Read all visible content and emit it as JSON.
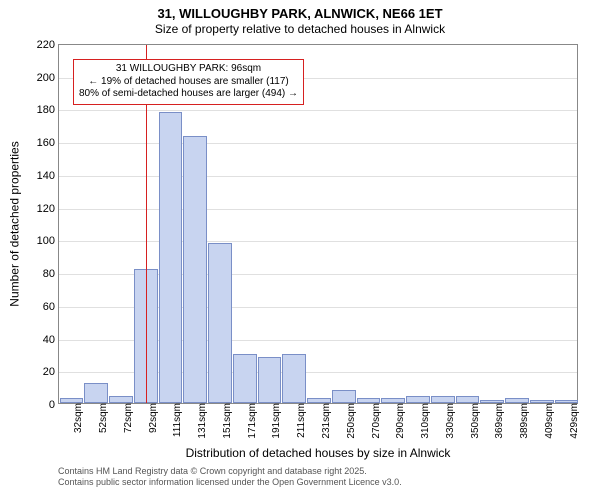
{
  "title_line1": "31, WILLOUGHBY PARK, ALNWICK, NE66 1ET",
  "title_line2": "Size of property relative to detached houses in Alnwick",
  "y_axis_label": "Number of detached properties",
  "x_axis_label": "Distribution of detached houses by size in Alnwick",
  "footer_line1": "Contains HM Land Registry data © Crown copyright and database right 2025.",
  "footer_line2": "Contains public sector information licensed under the Open Government Licence v3.0.",
  "annotation": {
    "line1": "31 WILLOUGHBY PARK: 96sqm",
    "line2": "← 19% of detached houses are smaller (117)",
    "line3": "80% of semi-detached houses are larger (494) →"
  },
  "chart": {
    "type": "histogram",
    "ylim": [
      0,
      220
    ],
    "ytick_step": 20,
    "y_ticks": [
      0,
      20,
      40,
      60,
      80,
      100,
      120,
      140,
      160,
      180,
      200,
      220
    ],
    "x_tick_labels": [
      "32sqm",
      "52sqm",
      "72sqm",
      "92sqm",
      "111sqm",
      "131sqm",
      "151sqm",
      "171sqm",
      "191sqm",
      "211sqm",
      "231sqm",
      "250sqm",
      "270sqm",
      "290sqm",
      "310sqm",
      "330sqm",
      "350sqm",
      "369sqm",
      "389sqm",
      "409sqm",
      "429sqm"
    ],
    "values": [
      3,
      12,
      4,
      82,
      178,
      163,
      98,
      30,
      28,
      30,
      3,
      8,
      3,
      3,
      4,
      4,
      4,
      2,
      3,
      2,
      2
    ],
    "bar_fill": "#c8d4f0",
    "bar_border": "#7a8fc7",
    "background_color": "#ffffff",
    "grid_color": "#e0e0e0",
    "axis_color": "#888888",
    "vline_color": "#d62020",
    "vline_at_bar_index": 3.5,
    "annot_border_color": "#d62020",
    "label_fontsize": 12,
    "tick_fontsize": 11,
    "title_fontsize": 13
  }
}
